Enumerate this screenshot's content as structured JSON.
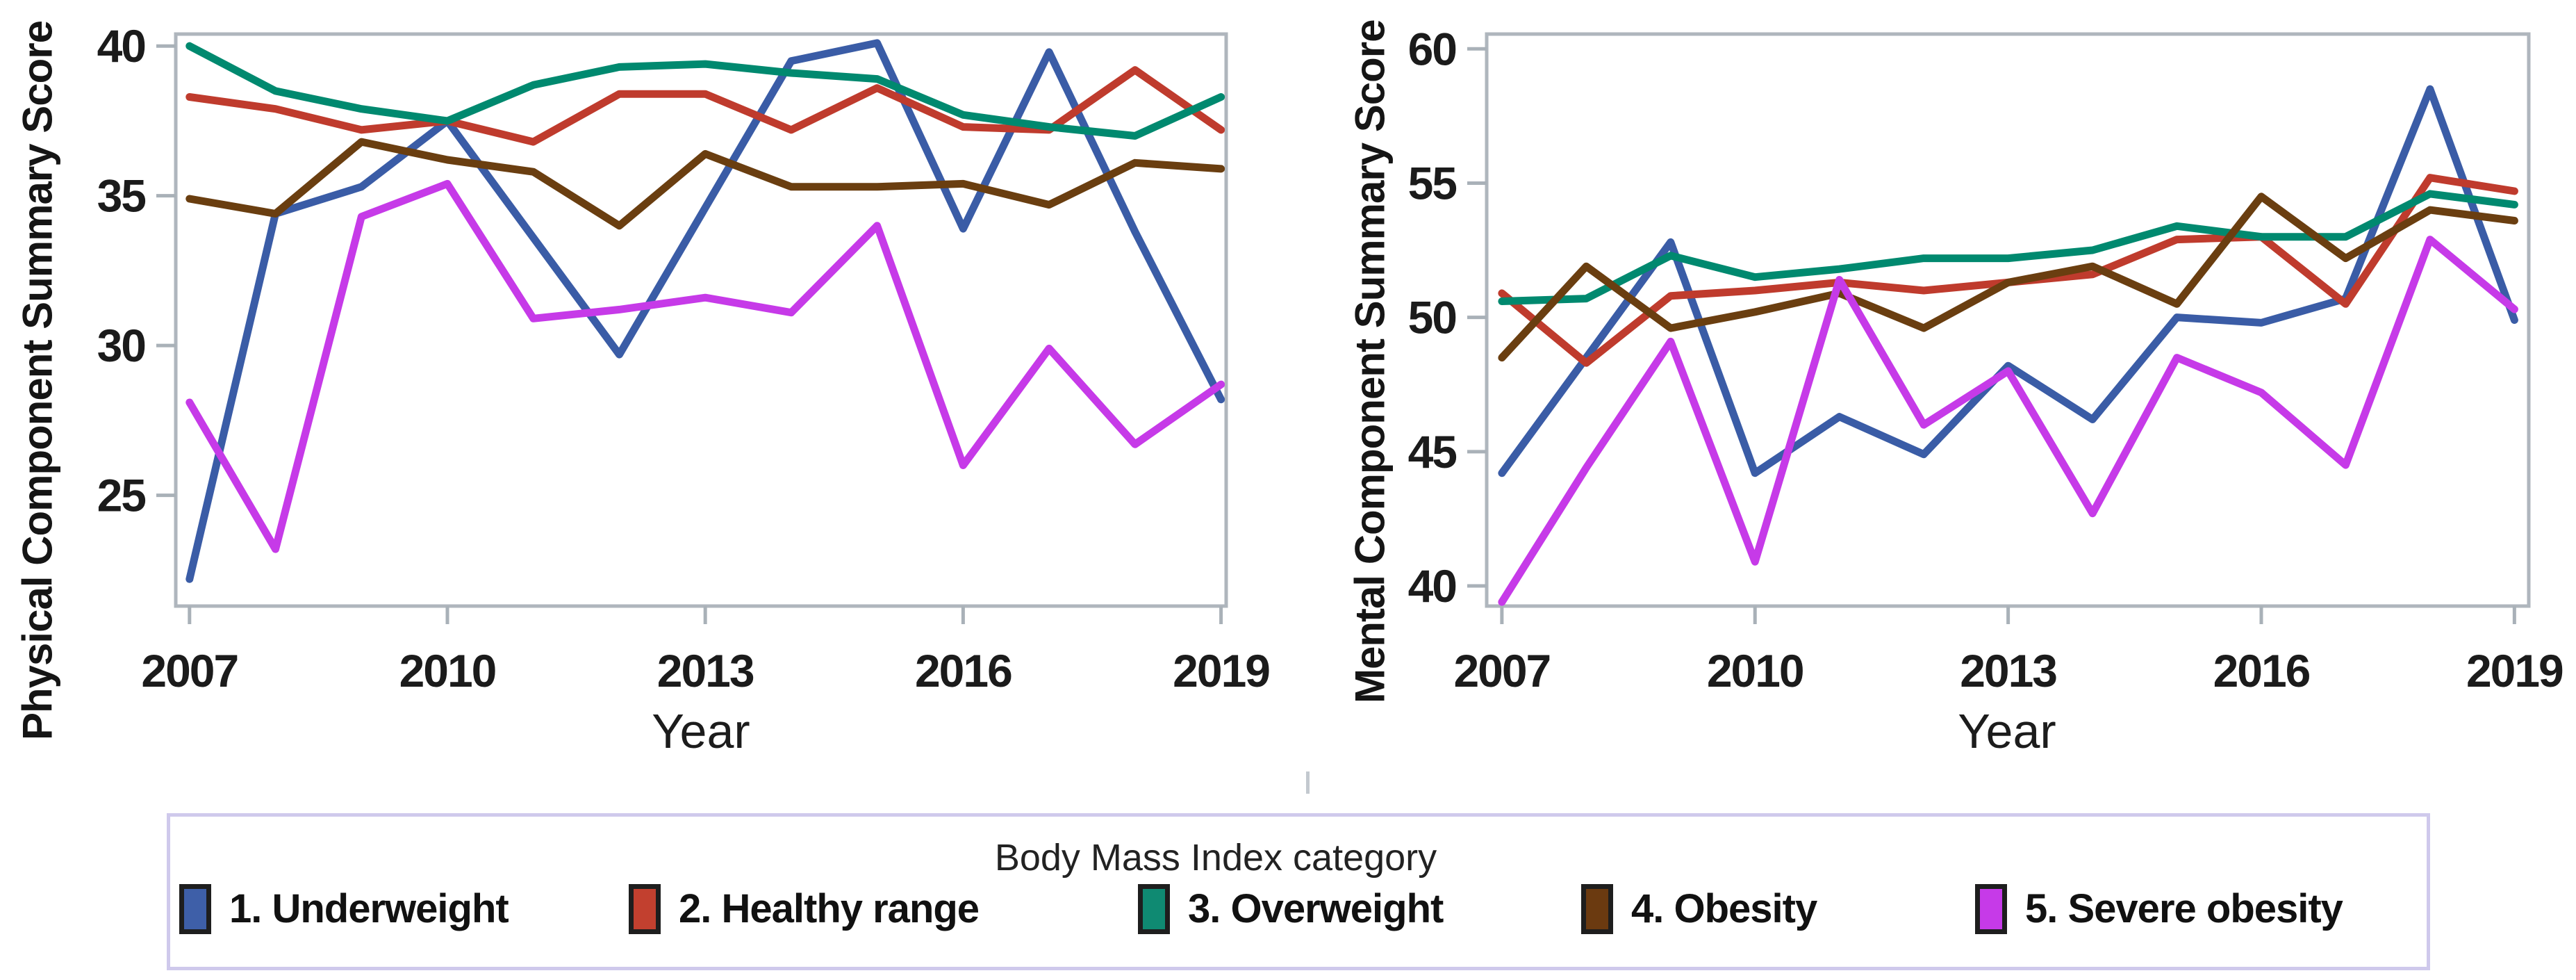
{
  "styles": {
    "frame_color": "#AFB6BD",
    "tick_color": "#A9B1B8",
    "tick_text_color": "#1b1b1b",
    "legend_border_color": "#CFC9EC",
    "line_width": 11
  },
  "chart_data": [
    {
      "type": "line",
      "title": "",
      "ylabel": "Physical Component Summary Score",
      "xlabel": "Year",
      "x": [
        2007,
        2008,
        2009,
        2010,
        2011,
        2012,
        2013,
        2014,
        2015,
        2016,
        2017,
        2018,
        2019
      ],
      "xticks": [
        2007,
        2010,
        2013,
        2016,
        2019
      ],
      "yticks": [
        25,
        30,
        35,
        40
      ],
      "xlim": [
        2006.84,
        2019.06
      ],
      "ylim": [
        21.3,
        40.4
      ],
      "grid": false,
      "series": [
        {
          "name": "1. Underweight",
          "color": "#3A5CA6",
          "values": [
            22.2,
            34.4,
            35.3,
            37.5,
            33.6,
            29.7,
            34.6,
            39.5,
            40.1,
            33.9,
            39.8,
            33.8,
            28.2
          ]
        },
        {
          "name": "2. Healthy range",
          "color": "#BF3B2D",
          "values": [
            38.3,
            37.9,
            37.2,
            37.5,
            36.8,
            38.4,
            38.4,
            37.2,
            38.6,
            37.3,
            37.2,
            39.2,
            37.2
          ]
        },
        {
          "name": "3. Overweight",
          "color": "#00896F",
          "values": [
            40.0,
            38.5,
            37.9,
            37.5,
            38.7,
            39.3,
            39.4,
            39.1,
            38.9,
            37.7,
            37.3,
            37.0,
            38.3
          ]
        },
        {
          "name": "4. Obesity",
          "color": "#6A3E10",
          "values": [
            34.9,
            34.4,
            36.8,
            36.2,
            35.8,
            34.0,
            36.4,
            35.3,
            35.3,
            35.4,
            34.7,
            36.1,
            35.9
          ]
        },
        {
          "name": "5. Severe obesity",
          "color": "#C63AE8",
          "values": [
            28.1,
            23.2,
            34.3,
            35.4,
            30.9,
            31.2,
            31.6,
            31.1,
            34.0,
            26.0,
            29.9,
            26.7,
            28.7
          ]
        }
      ]
    },
    {
      "type": "line",
      "title": "",
      "ylabel": "Mental Component Summary Score",
      "xlabel": "Year",
      "x": [
        2007,
        2008,
        2009,
        2010,
        2011,
        2012,
        2013,
        2014,
        2015,
        2016,
        2017,
        2018,
        2019
      ],
      "xticks": [
        2007,
        2010,
        2013,
        2016,
        2019
      ],
      "yticks": [
        40,
        45,
        50,
        55,
        60
      ],
      "xlim": [
        2006.82,
        2019.17
      ],
      "ylim": [
        39.25,
        60.55
      ],
      "grid": false,
      "series": [
        {
          "name": "1. Underweight",
          "color": "#3A5CA6",
          "values": [
            44.2,
            48.5,
            52.8,
            44.2,
            46.3,
            44.9,
            48.2,
            46.2,
            50.0,
            49.8,
            50.7,
            58.5,
            49.9
          ]
        },
        {
          "name": "2. Healthy range",
          "color": "#BF3B2D",
          "values": [
            50.9,
            48.3,
            50.8,
            51.0,
            51.3,
            51.0,
            51.3,
            51.6,
            52.9,
            53.0,
            50.5,
            55.2,
            54.7
          ]
        },
        {
          "name": "3. Overweight",
          "color": "#00896F",
          "values": [
            50.6,
            50.7,
            52.3,
            51.5,
            51.8,
            52.2,
            52.2,
            52.5,
            53.4,
            53.0,
            53.0,
            54.6,
            54.2
          ]
        },
        {
          "name": "4. Obesity",
          "color": "#6A3E10",
          "values": [
            48.5,
            51.9,
            49.6,
            50.2,
            50.9,
            49.6,
            51.3,
            51.9,
            50.5,
            54.5,
            52.2,
            54.0,
            53.6
          ]
        },
        {
          "name": "5. Severe obesity",
          "color": "#C63AE8",
          "values": [
            39.4,
            44.4,
            49.1,
            40.9,
            51.4,
            46.0,
            48.0,
            42.7,
            48.5,
            47.2,
            44.5,
            52.9,
            50.3
          ]
        }
      ]
    }
  ],
  "legend": {
    "title": "Body Mass Index category",
    "items": [
      {
        "label": "1. Underweight",
        "color": "#3E5FA8"
      },
      {
        "label": "2. Healthy range",
        "color": "#C2402F"
      },
      {
        "label": "3. Overweight",
        "color": "#0F8A72"
      },
      {
        "label": "4. Obesity",
        "color": "#6B3A10"
      },
      {
        "label": "5. Severe obesity",
        "color": "#C63AE8"
      }
    ]
  }
}
